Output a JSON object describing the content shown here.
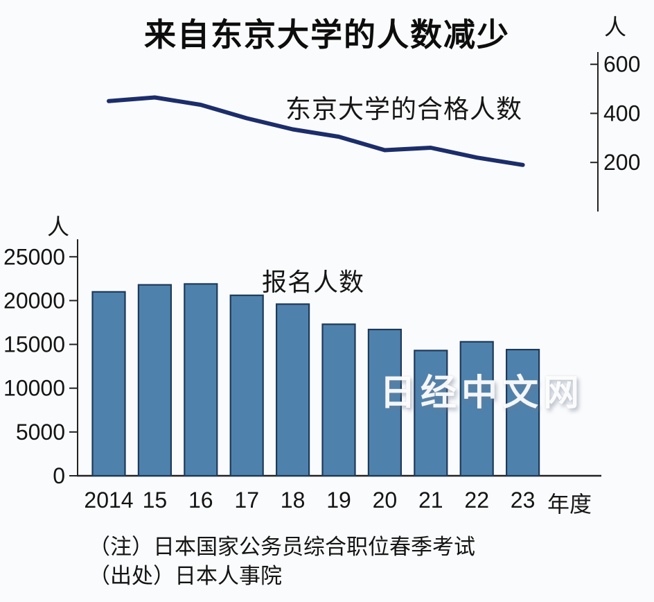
{
  "title": "来自东京大学的人数减少",
  "watermark": "日经中文网",
  "notes": {
    "line1": "（注）日本国家公务员综合职位春季考试",
    "line2": "（出处）日本人事院"
  },
  "x_axis": {
    "categories": [
      "2014",
      "15",
      "16",
      "17",
      "18",
      "19",
      "20",
      "21",
      "22",
      "23"
    ],
    "unit_label": "年度"
  },
  "chart_data": [
    {
      "type": "line",
      "title": "东京大学的合格人数",
      "categories": [
        "2014",
        "15",
        "16",
        "17",
        "18",
        "19",
        "20",
        "21",
        "22",
        "23"
      ],
      "values": [
        450,
        465,
        435,
        380,
        335,
        305,
        250,
        260,
        220,
        190
      ],
      "ylabel": "人",
      "yticks": [
        200,
        400,
        600
      ],
      "ylim": [
        0,
        650
      ],
      "line_color": "#1c2d6b",
      "legend_position": "inline-label-above-line",
      "grid": false
    },
    {
      "type": "bar",
      "title": "报名人数",
      "categories": [
        "2014",
        "15",
        "16",
        "17",
        "18",
        "19",
        "20",
        "21",
        "22",
        "23"
      ],
      "values": [
        21000,
        21800,
        21900,
        20600,
        19600,
        17300,
        16700,
        14300,
        15300,
        14400
      ],
      "ylabel": "人",
      "xlabel": "年度",
      "yticks": [
        0,
        5000,
        10000,
        15000,
        20000,
        25000
      ],
      "ylim": [
        0,
        27000
      ],
      "bar_color": "#4e82ad",
      "bar_border_color": "#1e3a5a",
      "legend_position": "inline-label-above-bars",
      "grid": false
    }
  ]
}
